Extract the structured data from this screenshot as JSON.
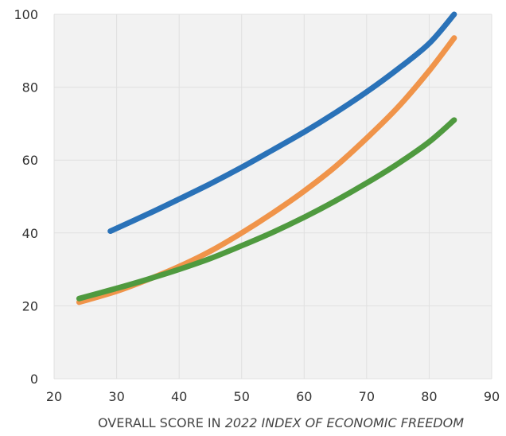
{
  "chart_data": {
    "type": "line",
    "title": "",
    "xlabel": {
      "prefix": "OVERALL SCORE IN ",
      "italic": "2022 INDEX OF ECONOMIC FREEDOM"
    },
    "ylabel": "",
    "xlim": [
      20,
      90
    ],
    "ylim": [
      0,
      100
    ],
    "xticks": [
      20,
      30,
      40,
      50,
      60,
      70,
      80,
      90
    ],
    "yticks": [
      0,
      20,
      40,
      60,
      80,
      100
    ],
    "grid": true,
    "legend": "none",
    "plot_background": "#f2f2f2",
    "grid_color": "#e0e0e0",
    "series": [
      {
        "color": "#2a72b8",
        "x": [
          29,
          35,
          40,
          45,
          50,
          55,
          60,
          65,
          70,
          75,
          80,
          84
        ],
        "y": [
          40.5,
          45.2,
          49.3,
          53.5,
          58.0,
          62.8,
          67.7,
          73.0,
          78.7,
          85.0,
          92.0,
          100.0
        ]
      },
      {
        "color": "#f0944a",
        "x": [
          24,
          30,
          35,
          40,
          45,
          50,
          55,
          60,
          65,
          70,
          75,
          80,
          84
        ],
        "y": [
          21.0,
          24.0,
          27.2,
          30.8,
          35.0,
          40.0,
          45.5,
          51.5,
          58.2,
          66.0,
          74.5,
          84.5,
          93.5
        ]
      },
      {
        "color": "#4f9a3f",
        "x": [
          24,
          30,
          35,
          40,
          45,
          50,
          55,
          60,
          65,
          70,
          75,
          80,
          84
        ],
        "y": [
          22.0,
          24.8,
          27.3,
          30.0,
          33.0,
          36.5,
          40.2,
          44.3,
          48.8,
          53.7,
          59.0,
          65.0,
          71.0
        ]
      }
    ]
  }
}
